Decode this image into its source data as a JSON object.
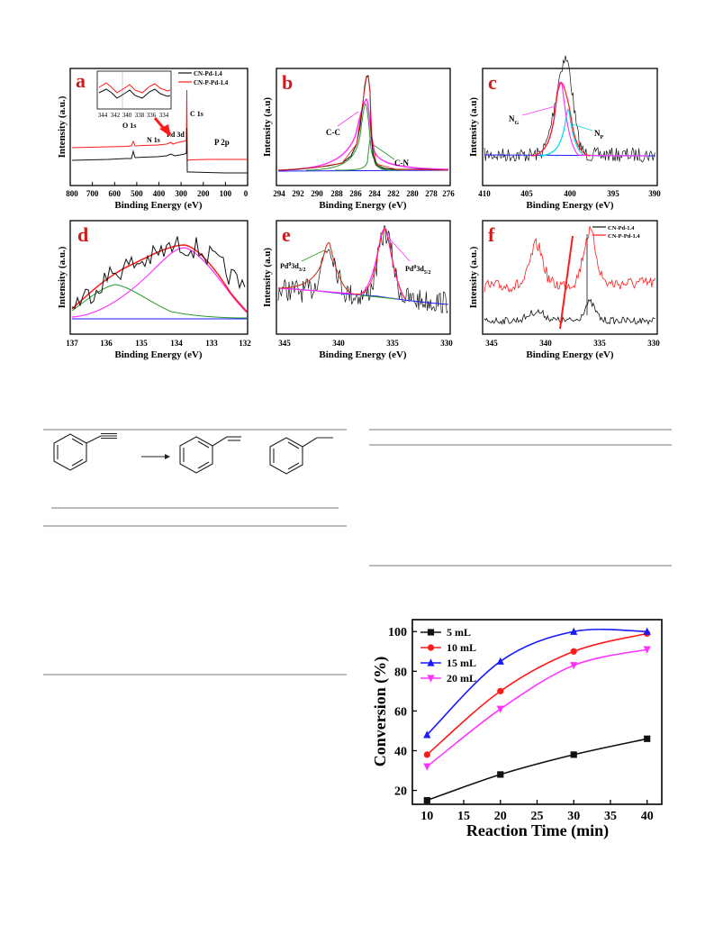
{
  "xps_panels": {
    "a": {
      "label": "a",
      "xlabel": "Binding Energy (eV)",
      "ylabel": "Intensity (a.u.)",
      "ticks": [
        "800",
        "700",
        "600",
        "500",
        "400",
        "300",
        "200",
        "100",
        "0"
      ],
      "legend": [
        "CN-Pd-1.4",
        "CN-P-Pd-1.4"
      ],
      "inset_ticks": [
        "344",
        "342",
        "340",
        "338",
        "336",
        "334"
      ],
      "annotations": {
        "c1s": "C 1s",
        "o1s": "O 1s",
        "n1s": "N 1s",
        "pd3d": "Pd 3d",
        "p2p": "P 2p"
      }
    },
    "b": {
      "label": "b",
      "xlabel": "Binding Energy (eV)",
      "ylabel": "Intensity (a.u)",
      "ticks": [
        "294",
        "292",
        "290",
        "288",
        "286",
        "284",
        "282",
        "280",
        "278",
        "276"
      ],
      "annotations": {
        "cc": "C-C",
        "cn": "C-N"
      }
    },
    "c": {
      "label": "c",
      "xlabel": "Binding Energy (eV)",
      "ylabel": "Intensity (a.u)",
      "ticks": [
        "410",
        "405",
        "400",
        "395",
        "390"
      ],
      "annotations": {
        "ng": "N",
        "ng_sub": "G",
        "np": "N",
        "np_sub": "P"
      }
    },
    "d": {
      "label": "d",
      "xlabel": "Binding Energy (eV)",
      "ylabel": "Intensity (a.u.)",
      "ticks": [
        "137",
        "136",
        "135",
        "134",
        "133",
        "132"
      ]
    },
    "e": {
      "label": "e",
      "xlabel": "Binding Energy (eV)",
      "ylabel": "Intensity (a.u)",
      "ticks": [
        "345",
        "340",
        "335",
        "330"
      ],
      "annotations": {
        "pd32": "Pd",
        "pd32_sup": "0",
        "pd32_mid": "3d",
        "pd32_sub": "3/2",
        "pd52": "Pd",
        "pd52_sup": "0",
        "pd52_mid": "3d",
        "pd52_sub": "5/2"
      }
    },
    "f": {
      "label": "f",
      "xlabel": "Binding Energy (eV)",
      "ylabel": "Intensity (a.u.)",
      "ticks": [
        "345",
        "340",
        "335",
        "330"
      ],
      "legend": [
        "CN-Pd-1.4",
        "CN-P-Pd-1.4"
      ]
    }
  },
  "colors": {
    "black": "#111111",
    "red": "#ff1a1a",
    "blue": "#1a1aff",
    "magenta": "#ff33ff",
    "green": "#2a9a2a",
    "cyan": "#00d8e8",
    "panel_label": "#d11a1a"
  },
  "chart_data": {
    "type": "line",
    "xlabel": "Reaction Time (min)",
    "ylabel": "Conversion (%)",
    "x": [
      10,
      20,
      30,
      40
    ],
    "xlim": [
      8,
      42
    ],
    "ylim": [
      13,
      106
    ],
    "xticks": [
      10,
      15,
      20,
      25,
      30,
      35,
      40
    ],
    "yticks": [
      20,
      40,
      60,
      80,
      100
    ],
    "legend_position": "top-left",
    "grid": false,
    "series": [
      {
        "name": "5 mL",
        "values": [
          15,
          28,
          38,
          46
        ],
        "color": "#111111",
        "marker": "square"
      },
      {
        "name": "10 mL",
        "values": [
          38,
          70,
          90,
          99
        ],
        "color": "#ff1a1a",
        "marker": "circle"
      },
      {
        "name": "15 mL",
        "values": [
          48,
          85,
          100,
          100
        ],
        "color": "#1a1aff",
        "marker": "triangle-up"
      },
      {
        "name": "20 mL",
        "values": [
          32,
          61,
          83,
          91
        ],
        "color": "#ff33ff",
        "marker": "triangle-down"
      }
    ]
  }
}
